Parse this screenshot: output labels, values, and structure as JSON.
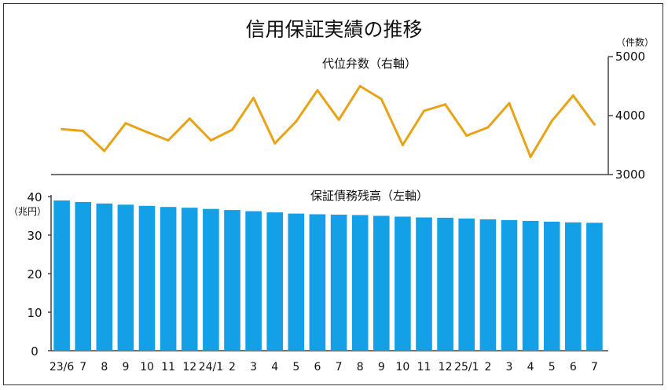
{
  "title": "信用保証実績の推移",
  "colors": {
    "line": "#E8A317",
    "bar": "#14A0E6",
    "axis": "#444444"
  },
  "chart_data": [
    {
      "type": "line",
      "subtitle": "代位弁数（右軸）",
      "unit": "（件数）",
      "ylim": [
        3000,
        5000
      ],
      "yticks": [
        "5000",
        "4000",
        "3000"
      ],
      "x": [
        "23/6",
        "7",
        "8",
        "9",
        "10",
        "11",
        "12",
        "24/1",
        "2",
        "3",
        "4",
        "5",
        "6",
        "7",
        "8",
        "9",
        "10",
        "11",
        "12",
        "25/1",
        "2",
        "3",
        "4",
        "5",
        "6",
        "7"
      ],
      "values": [
        3770,
        3740,
        3400,
        3870,
        3720,
        3580,
        3950,
        3580,
        3760,
        4300,
        3530,
        3900,
        4430,
        3930,
        4500,
        4280,
        3500,
        4080,
        4190,
        3660,
        3800,
        4210,
        3300,
        3910,
        4340,
        3850
      ]
    },
    {
      "type": "bar",
      "subtitle": "保証債務残高（左軸）",
      "unit": "（兆円）",
      "ylim": [
        0,
        40
      ],
      "yticks": [
        "40",
        "30",
        "20",
        "10",
        "0"
      ],
      "categories": [
        "23/6",
        "7",
        "8",
        "9",
        "10",
        "11",
        "12",
        "24/1",
        "2",
        "3",
        "4",
        "5",
        "6",
        "7",
        "8",
        "9",
        "10",
        "11",
        "12",
        "25/1",
        "2",
        "3",
        "4",
        "5",
        "6",
        "7"
      ],
      "values": [
        39.0,
        38.6,
        38.2,
        37.9,
        37.6,
        37.3,
        37.1,
        36.8,
        36.5,
        36.2,
        35.9,
        35.6,
        35.4,
        35.3,
        35.2,
        35.0,
        34.8,
        34.6,
        34.5,
        34.3,
        34.1,
        33.9,
        33.7,
        33.5,
        33.3,
        33.2
      ]
    }
  ]
}
